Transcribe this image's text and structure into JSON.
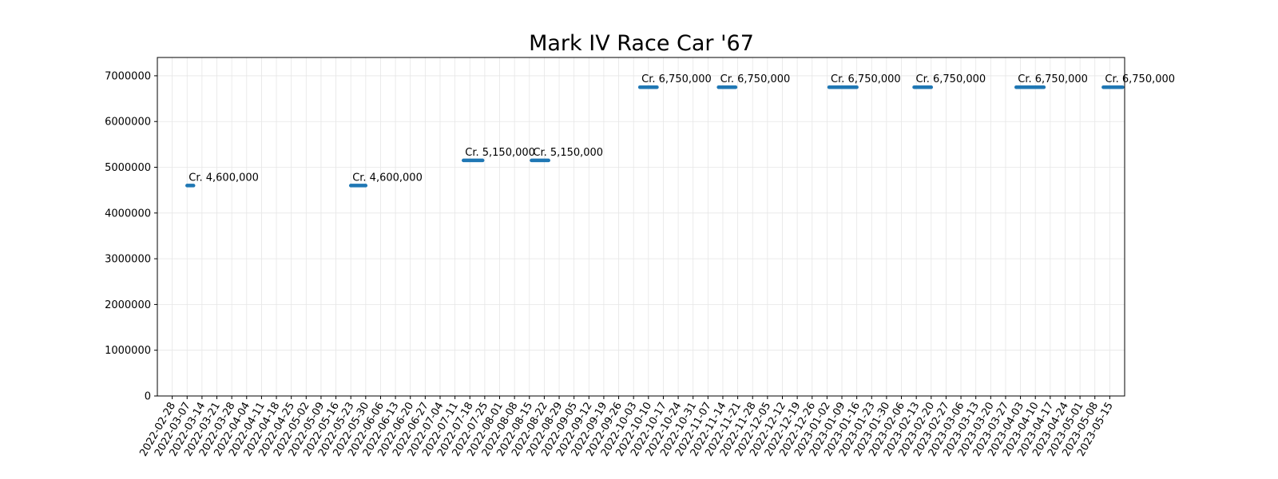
{
  "chart_data": {
    "type": "line",
    "title": "Mark IV Race Car '67",
    "xlabel": "",
    "ylabel": "",
    "ylim": [
      0,
      7400000
    ],
    "xlim": [
      "2022-02-21",
      "2023-05-22"
    ],
    "y_ticks": [
      0,
      1000000,
      2000000,
      3000000,
      4000000,
      5000000,
      6000000,
      7000000
    ],
    "x_ticks": [
      "2022-02-28",
      "2022-03-07",
      "2022-03-14",
      "2022-03-21",
      "2022-03-28",
      "2022-04-04",
      "2022-04-11",
      "2022-04-18",
      "2022-04-25",
      "2022-05-02",
      "2022-05-09",
      "2022-05-16",
      "2022-05-23",
      "2022-05-30",
      "2022-06-06",
      "2022-06-13",
      "2022-06-20",
      "2022-06-27",
      "2022-07-04",
      "2022-07-11",
      "2022-07-18",
      "2022-07-25",
      "2022-08-01",
      "2022-08-08",
      "2022-08-15",
      "2022-08-22",
      "2022-08-29",
      "2022-09-05",
      "2022-09-12",
      "2022-09-19",
      "2022-09-26",
      "2022-10-03",
      "2022-10-10",
      "2022-10-17",
      "2022-10-24",
      "2022-10-31",
      "2022-11-07",
      "2022-11-14",
      "2022-11-21",
      "2022-11-28",
      "2022-12-05",
      "2022-12-12",
      "2022-12-19",
      "2022-12-26",
      "2023-01-02",
      "2023-01-09",
      "2023-01-16",
      "2023-01-23",
      "2023-01-30",
      "2023-02-06",
      "2023-02-13",
      "2023-02-20",
      "2023-02-27",
      "2023-03-06",
      "2023-03-13",
      "2023-03-20",
      "2023-03-27",
      "2023-04-03",
      "2023-04-10",
      "2023-04-17",
      "2023-04-24",
      "2023-05-01",
      "2023-05-08",
      "2023-05-15"
    ],
    "grid": true,
    "series": [
      {
        "color": "#1f77b4",
        "segments": [
          {
            "start": "2022-03-07",
            "end": "2022-03-10",
            "value": 4600000,
            "label": "Cr. 4,600,000"
          },
          {
            "start": "2022-05-23",
            "end": "2022-05-30",
            "value": 4600000,
            "label": "Cr. 4,600,000"
          },
          {
            "start": "2022-07-15",
            "end": "2022-07-24",
            "value": 5150000,
            "label": "Cr. 5,150,000"
          },
          {
            "start": "2022-08-16",
            "end": "2022-08-24",
            "value": 5150000,
            "label": "Cr. 5,150,000"
          },
          {
            "start": "2022-10-06",
            "end": "2022-10-14",
            "value": 6750000,
            "label": "Cr. 6,750,000"
          },
          {
            "start": "2022-11-12",
            "end": "2022-11-20",
            "value": 6750000,
            "label": "Cr. 6,750,000"
          },
          {
            "start": "2023-01-03",
            "end": "2023-01-16",
            "value": 6750000,
            "label": "Cr. 6,750,000"
          },
          {
            "start": "2023-02-12",
            "end": "2023-02-20",
            "value": 6750000,
            "label": "Cr. 6,750,000"
          },
          {
            "start": "2023-04-01",
            "end": "2023-04-14",
            "value": 6750000,
            "label": "Cr. 6,750,000"
          },
          {
            "start": "2023-05-12",
            "end": "2023-05-21",
            "value": 6750000,
            "label": "Cr. 6,750,000"
          }
        ]
      }
    ]
  }
}
